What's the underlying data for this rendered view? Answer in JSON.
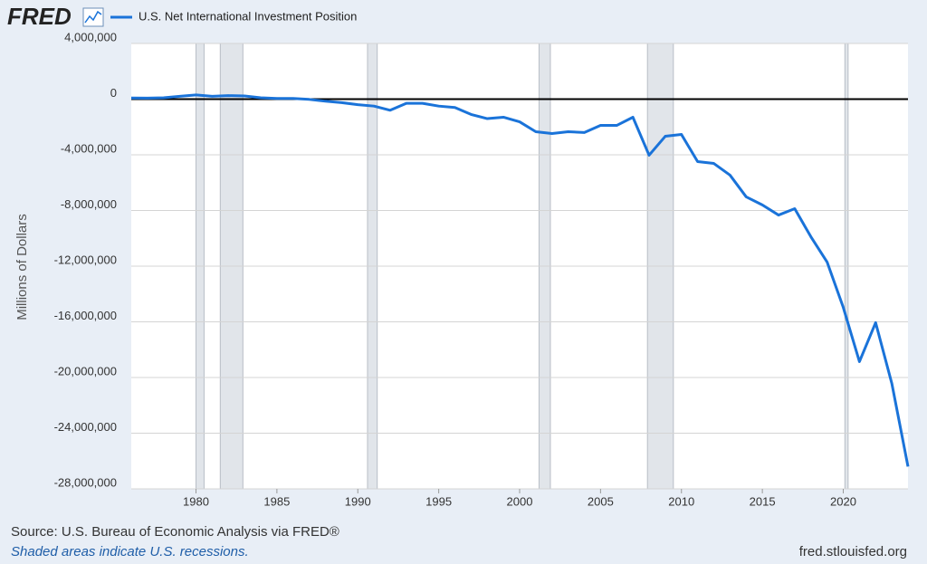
{
  "chart_data": {
    "type": "line",
    "brand": "FRED",
    "ylabel": "Millions of Dollars",
    "source": "Source: U.S. Bureau of Economic Analysis via FRED®",
    "note": "Shaded areas indicate U.S. recessions.",
    "site": "fred.stlouisfed.org",
    "x": [
      1976,
      1977,
      1978,
      1979,
      1980,
      1981,
      1982,
      1983,
      1984,
      1985,
      1986,
      1987,
      1988,
      1989,
      1990,
      1991,
      1992,
      1993,
      1994,
      1995,
      1996,
      1997,
      1998,
      1999,
      2000,
      2001,
      2002,
      2003,
      2004,
      2005,
      2006,
      2007,
      2008,
      2009,
      2010,
      2011,
      2012,
      2013,
      2014,
      2015,
      2016,
      2017,
      2018,
      2019,
      2020,
      2021,
      2022,
      2023,
      2024
    ],
    "series": [
      {
        "name": "U.S. Net International Investment Position",
        "color": "#1a73d9",
        "values": [
          80000,
          70000,
          100000,
          200000,
          300000,
          200000,
          250000,
          230000,
          100000,
          50000,
          50000,
          -20000,
          -150000,
          -250000,
          -400000,
          -500000,
          -800000,
          -300000,
          -300000,
          -500000,
          -600000,
          -1100000,
          -1400000,
          -1300000,
          -1630000,
          -2340000,
          -2470000,
          -2340000,
          -2400000,
          -1890000,
          -1890000,
          -1300000,
          -4030000,
          -2670000,
          -2540000,
          -4490000,
          -4620000,
          -5460000,
          -7020000,
          -7600000,
          -8330000,
          -7870000,
          -9890000,
          -11700000,
          -14960000,
          -18860000,
          -16060000,
          -20420000,
          -26400000
        ]
      }
    ],
    "recessions": [
      [
        1980.0,
        1980.5
      ],
      [
        1981.5,
        1982.9
      ],
      [
        1990.6,
        1991.2
      ],
      [
        2001.2,
        2001.9
      ],
      [
        2007.9,
        2009.5
      ],
      [
        2020.1,
        2020.3
      ]
    ],
    "xlim": [
      1976,
      2024
    ],
    "xticks": [
      1980,
      1985,
      1990,
      1995,
      2000,
      2005,
      2010,
      2015,
      2020
    ],
    "ylim": [
      -28000000,
      4000000
    ],
    "yticks": [
      {
        "value": 4000000,
        "label": "4,000,000"
      },
      0,
      {
        "value": -4000000,
        "label": "-4,000,000"
      },
      {
        "value": -8000000,
        "label": "-8,000,000"
      },
      {
        "value": -12000000,
        "label": "-12,000,000"
      },
      {
        "value": -16000000,
        "label": "-16,000,000"
      },
      {
        "value": -20000000,
        "label": "-20,000,000"
      },
      {
        "value": -24000000,
        "label": "-24,000,000"
      },
      {
        "value": -28000000,
        "label": "-28,000,000"
      }
    ],
    "grid": true
  }
}
